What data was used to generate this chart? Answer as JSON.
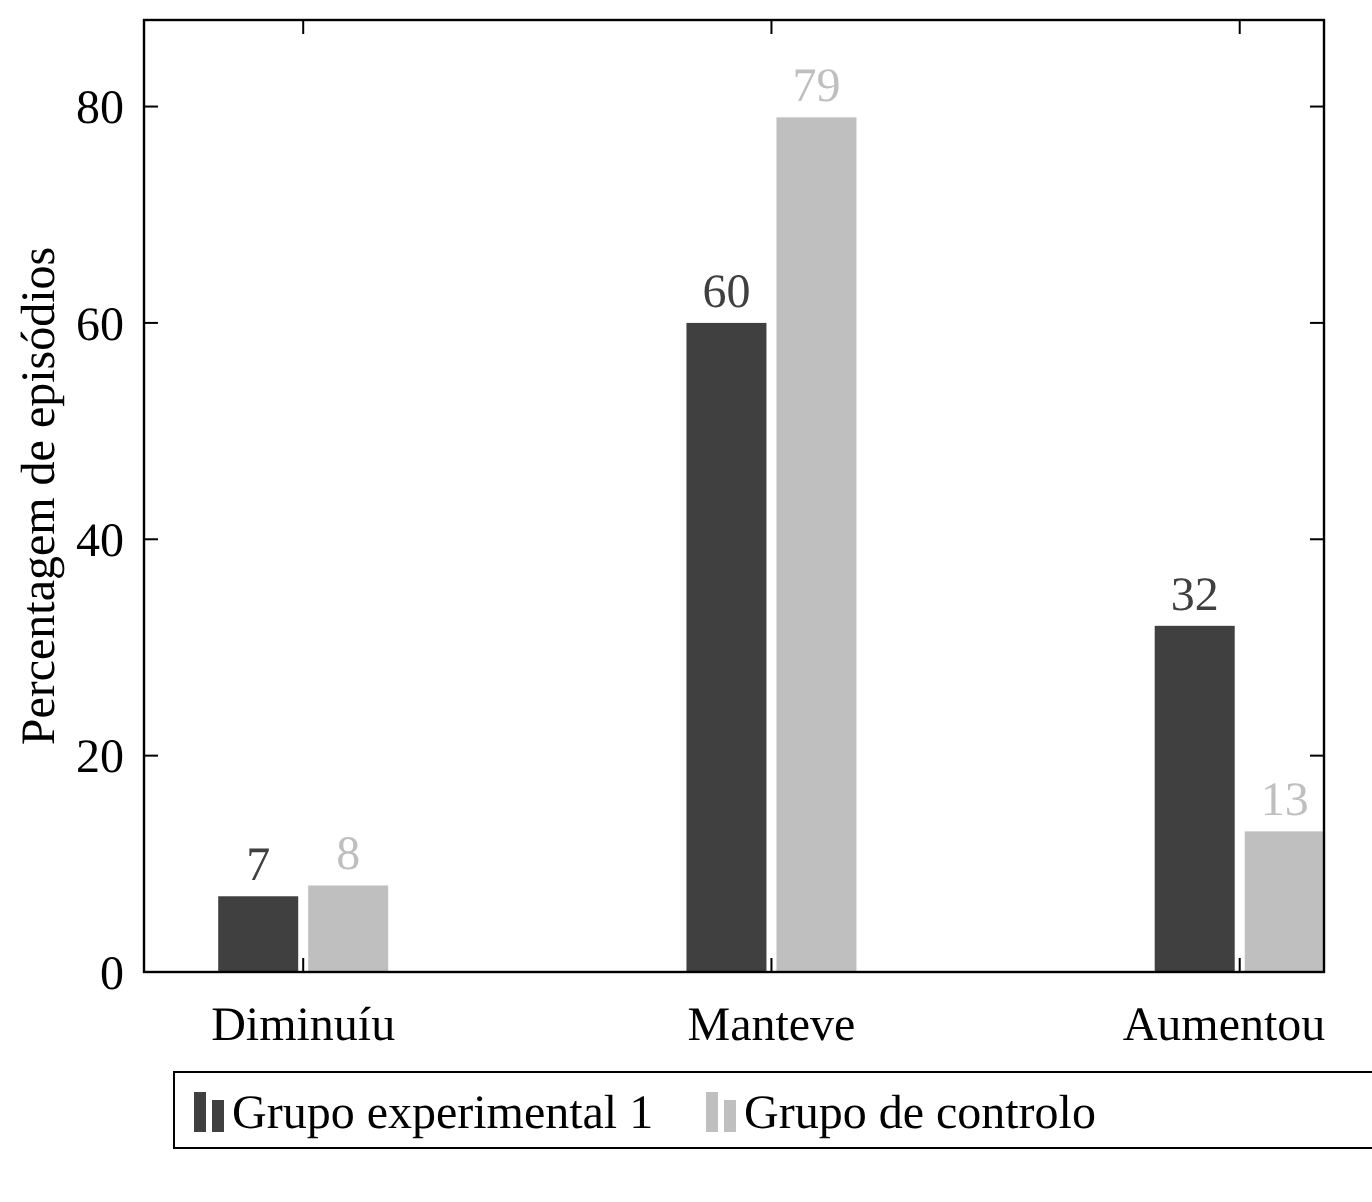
{
  "chart_data": {
    "type": "bar",
    "ylabel": "Percentagem de episódios",
    "categories": [
      "Diminuíu",
      "Manteve",
      "Aumentou"
    ],
    "series": [
      {
        "name": "Grupo experimental 1",
        "color": "#404040",
        "values": [
          7,
          60,
          32
        ]
      },
      {
        "name": "Grupo de controlo",
        "color": "#bfbfbf",
        "values": [
          8,
          79,
          13
        ]
      }
    ],
    "ylim": [
      0,
      88
    ],
    "yticks": [
      0,
      20,
      40,
      60,
      80
    ],
    "data_labels": true,
    "legend": "bottom",
    "grid": false
  }
}
